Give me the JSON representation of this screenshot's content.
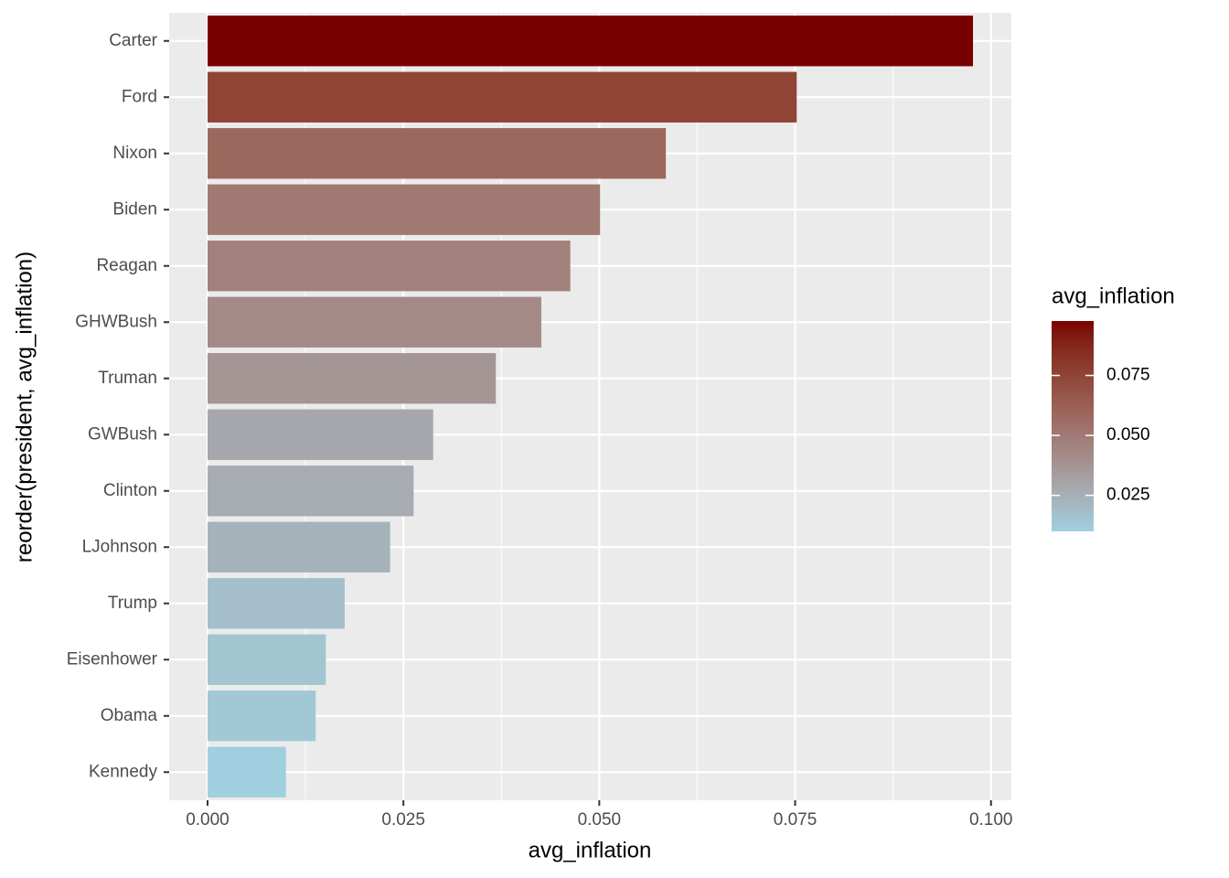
{
  "chart_data": {
    "type": "bar",
    "orientation": "horizontal",
    "x_label": "avg_inflation",
    "y_label": "reorder(president, avg_inflation)",
    "categories": [
      "Carter",
      "Ford",
      "Nixon",
      "Biden",
      "Reagan",
      "GHWBush",
      "Truman",
      "GWBush",
      "Clinton",
      "LJohnson",
      "Trump",
      "Eisenhower",
      "Obama",
      "Kennedy"
    ],
    "values": [
      0.0977,
      0.0752,
      0.0585,
      0.0501,
      0.0463,
      0.0426,
      0.0368,
      0.0288,
      0.0263,
      0.0233,
      0.0175,
      0.0151,
      0.0138,
      0.01
    ],
    "xlim": [
      -0.0049,
      0.1026
    ],
    "xticks": [
      {
        "value": 0,
        "label": "0.000"
      },
      {
        "value": 0.025,
        "label": "0.025"
      },
      {
        "value": 0.05,
        "label": "0.050"
      },
      {
        "value": 0.075,
        "label": "0.075"
      },
      {
        "value": 0.1,
        "label": "0.100"
      }
    ],
    "grid": true,
    "legend": {
      "title": "avg_inflation",
      "position": "right",
      "low_color": "#a0d0e0",
      "high_color": "#780000",
      "ticks": [
        {
          "value": 0.025,
          "label": "0.025"
        },
        {
          "value": 0.05,
          "label": "0.050"
        },
        {
          "value": 0.075,
          "label": "0.075"
        }
      ]
    }
  }
}
